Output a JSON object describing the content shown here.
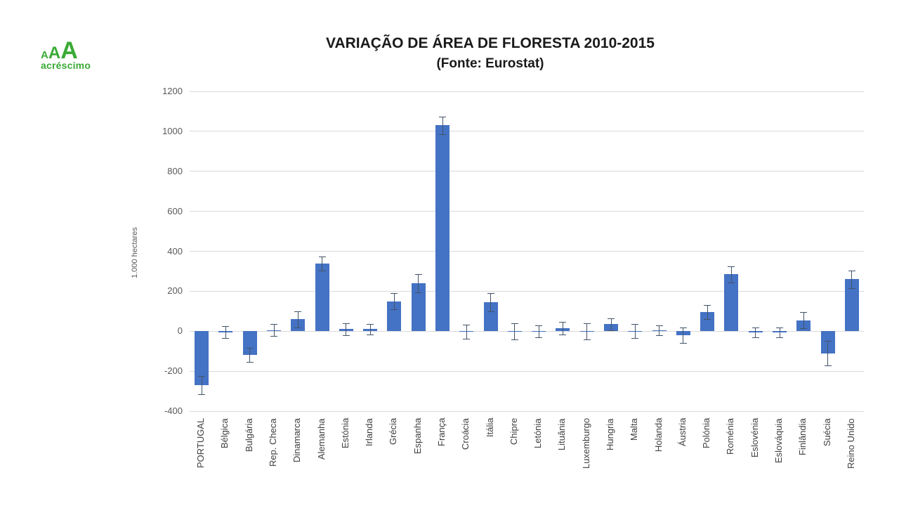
{
  "logo": {
    "letters": [
      "A",
      "A",
      "A"
    ],
    "subtext": "acréscimo",
    "color": "#3aaa35"
  },
  "chart_data": {
    "type": "bar",
    "title": "VARIAÇÃO DE ÁREA DE FLORESTA 2010-2015",
    "subtitle": "(Fonte: Eurostat)",
    "ylabel": "1.000 hectares",
    "ylim": [
      -400,
      1200
    ],
    "yticks": [
      1200,
      1000,
      800,
      600,
      400,
      200,
      0,
      -200,
      -400
    ],
    "grid": true,
    "legend": "none",
    "bar_color": "#4472c4",
    "error_bar_color": "#44546a",
    "categories": [
      "PORTUGAL",
      "Bélgica",
      "Bulgária",
      "Rep. Checa",
      "Dinamarca",
      "Alemanha",
      "Estónia",
      "Irlanda",
      "Grécia",
      "Espanha",
      "França",
      "Croácia",
      "Itália",
      "Chipre",
      "Letónia",
      "Lituânia",
      "Luxemburgo",
      "Hungria",
      "Malta",
      "Holanda",
      "Áustria",
      "Polónia",
      "Roménia",
      "Eslovénia",
      "Eslováquia",
      "Finlândia",
      "Suécia",
      "Reino Unido"
    ],
    "values": [
      -270,
      -5,
      -120,
      5,
      60,
      340,
      10,
      10,
      150,
      240,
      1030,
      -3,
      145,
      0,
      0,
      15,
      0,
      35,
      0,
      5,
      -20,
      95,
      285,
      -5,
      -5,
      55,
      -110,
      260
    ],
    "errors": [
      45,
      30,
      35,
      30,
      40,
      35,
      30,
      25,
      40,
      45,
      45,
      35,
      45,
      40,
      30,
      30,
      40,
      30,
      35,
      25,
      40,
      35,
      40,
      25,
      25,
      40,
      60,
      45
    ]
  }
}
